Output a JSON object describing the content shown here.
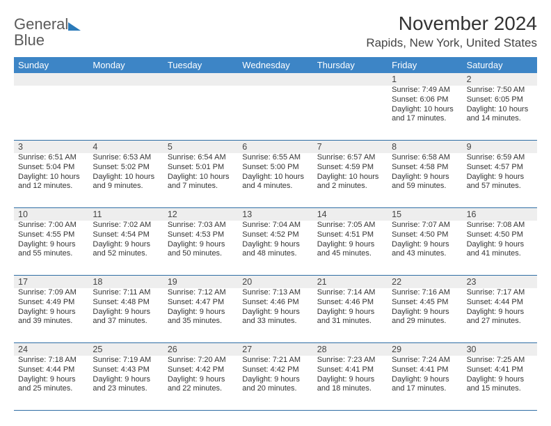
{
  "brand": {
    "word1": "General",
    "word2": "Blue"
  },
  "title": "November 2024",
  "location": "Rapids, New York, United States",
  "colors": {
    "header_bg": "#3d85c6",
    "header_text": "#ffffff",
    "strip_bg": "#eeeeee",
    "border": "#2e6da4",
    "text": "#333333",
    "brand_gray": "#5a5a5a",
    "brand_blue": "#2a7ab9"
  },
  "typography": {
    "title_fontsize": 28,
    "location_fontsize": 17,
    "header_fontsize": 13,
    "cell_fontsize": 11,
    "daynum_fontsize": 12.5
  },
  "day_names": [
    "Sunday",
    "Monday",
    "Tuesday",
    "Wednesday",
    "Thursday",
    "Friday",
    "Saturday"
  ],
  "weeks": [
    [
      null,
      null,
      null,
      null,
      null,
      {
        "n": "1",
        "sr": "Sunrise: 7:49 AM",
        "ss": "Sunset: 6:06 PM",
        "d1": "Daylight: 10 hours",
        "d2": "and 17 minutes."
      },
      {
        "n": "2",
        "sr": "Sunrise: 7:50 AM",
        "ss": "Sunset: 6:05 PM",
        "d1": "Daylight: 10 hours",
        "d2": "and 14 minutes."
      }
    ],
    [
      {
        "n": "3",
        "sr": "Sunrise: 6:51 AM",
        "ss": "Sunset: 5:04 PM",
        "d1": "Daylight: 10 hours",
        "d2": "and 12 minutes."
      },
      {
        "n": "4",
        "sr": "Sunrise: 6:53 AM",
        "ss": "Sunset: 5:02 PM",
        "d1": "Daylight: 10 hours",
        "d2": "and 9 minutes."
      },
      {
        "n": "5",
        "sr": "Sunrise: 6:54 AM",
        "ss": "Sunset: 5:01 PM",
        "d1": "Daylight: 10 hours",
        "d2": "and 7 minutes."
      },
      {
        "n": "6",
        "sr": "Sunrise: 6:55 AM",
        "ss": "Sunset: 5:00 PM",
        "d1": "Daylight: 10 hours",
        "d2": "and 4 minutes."
      },
      {
        "n": "7",
        "sr": "Sunrise: 6:57 AM",
        "ss": "Sunset: 4:59 PM",
        "d1": "Daylight: 10 hours",
        "d2": "and 2 minutes."
      },
      {
        "n": "8",
        "sr": "Sunrise: 6:58 AM",
        "ss": "Sunset: 4:58 PM",
        "d1": "Daylight: 9 hours",
        "d2": "and 59 minutes."
      },
      {
        "n": "9",
        "sr": "Sunrise: 6:59 AM",
        "ss": "Sunset: 4:57 PM",
        "d1": "Daylight: 9 hours",
        "d2": "and 57 minutes."
      }
    ],
    [
      {
        "n": "10",
        "sr": "Sunrise: 7:00 AM",
        "ss": "Sunset: 4:55 PM",
        "d1": "Daylight: 9 hours",
        "d2": "and 55 minutes."
      },
      {
        "n": "11",
        "sr": "Sunrise: 7:02 AM",
        "ss": "Sunset: 4:54 PM",
        "d1": "Daylight: 9 hours",
        "d2": "and 52 minutes."
      },
      {
        "n": "12",
        "sr": "Sunrise: 7:03 AM",
        "ss": "Sunset: 4:53 PM",
        "d1": "Daylight: 9 hours",
        "d2": "and 50 minutes."
      },
      {
        "n": "13",
        "sr": "Sunrise: 7:04 AM",
        "ss": "Sunset: 4:52 PM",
        "d1": "Daylight: 9 hours",
        "d2": "and 48 minutes."
      },
      {
        "n": "14",
        "sr": "Sunrise: 7:05 AM",
        "ss": "Sunset: 4:51 PM",
        "d1": "Daylight: 9 hours",
        "d2": "and 45 minutes."
      },
      {
        "n": "15",
        "sr": "Sunrise: 7:07 AM",
        "ss": "Sunset: 4:50 PM",
        "d1": "Daylight: 9 hours",
        "d2": "and 43 minutes."
      },
      {
        "n": "16",
        "sr": "Sunrise: 7:08 AM",
        "ss": "Sunset: 4:50 PM",
        "d1": "Daylight: 9 hours",
        "d2": "and 41 minutes."
      }
    ],
    [
      {
        "n": "17",
        "sr": "Sunrise: 7:09 AM",
        "ss": "Sunset: 4:49 PM",
        "d1": "Daylight: 9 hours",
        "d2": "and 39 minutes."
      },
      {
        "n": "18",
        "sr": "Sunrise: 7:11 AM",
        "ss": "Sunset: 4:48 PM",
        "d1": "Daylight: 9 hours",
        "d2": "and 37 minutes."
      },
      {
        "n": "19",
        "sr": "Sunrise: 7:12 AM",
        "ss": "Sunset: 4:47 PM",
        "d1": "Daylight: 9 hours",
        "d2": "and 35 minutes."
      },
      {
        "n": "20",
        "sr": "Sunrise: 7:13 AM",
        "ss": "Sunset: 4:46 PM",
        "d1": "Daylight: 9 hours",
        "d2": "and 33 minutes."
      },
      {
        "n": "21",
        "sr": "Sunrise: 7:14 AM",
        "ss": "Sunset: 4:46 PM",
        "d1": "Daylight: 9 hours",
        "d2": "and 31 minutes."
      },
      {
        "n": "22",
        "sr": "Sunrise: 7:16 AM",
        "ss": "Sunset: 4:45 PM",
        "d1": "Daylight: 9 hours",
        "d2": "and 29 minutes."
      },
      {
        "n": "23",
        "sr": "Sunrise: 7:17 AM",
        "ss": "Sunset: 4:44 PM",
        "d1": "Daylight: 9 hours",
        "d2": "and 27 minutes."
      }
    ],
    [
      {
        "n": "24",
        "sr": "Sunrise: 7:18 AM",
        "ss": "Sunset: 4:44 PM",
        "d1": "Daylight: 9 hours",
        "d2": "and 25 minutes."
      },
      {
        "n": "25",
        "sr": "Sunrise: 7:19 AM",
        "ss": "Sunset: 4:43 PM",
        "d1": "Daylight: 9 hours",
        "d2": "and 23 minutes."
      },
      {
        "n": "26",
        "sr": "Sunrise: 7:20 AM",
        "ss": "Sunset: 4:42 PM",
        "d1": "Daylight: 9 hours",
        "d2": "and 22 minutes."
      },
      {
        "n": "27",
        "sr": "Sunrise: 7:21 AM",
        "ss": "Sunset: 4:42 PM",
        "d1": "Daylight: 9 hours",
        "d2": "and 20 minutes."
      },
      {
        "n": "28",
        "sr": "Sunrise: 7:23 AM",
        "ss": "Sunset: 4:41 PM",
        "d1": "Daylight: 9 hours",
        "d2": "and 18 minutes."
      },
      {
        "n": "29",
        "sr": "Sunrise: 7:24 AM",
        "ss": "Sunset: 4:41 PM",
        "d1": "Daylight: 9 hours",
        "d2": "and 17 minutes."
      },
      {
        "n": "30",
        "sr": "Sunrise: 7:25 AM",
        "ss": "Sunset: 4:41 PM",
        "d1": "Daylight: 9 hours",
        "d2": "and 15 minutes."
      }
    ]
  ]
}
